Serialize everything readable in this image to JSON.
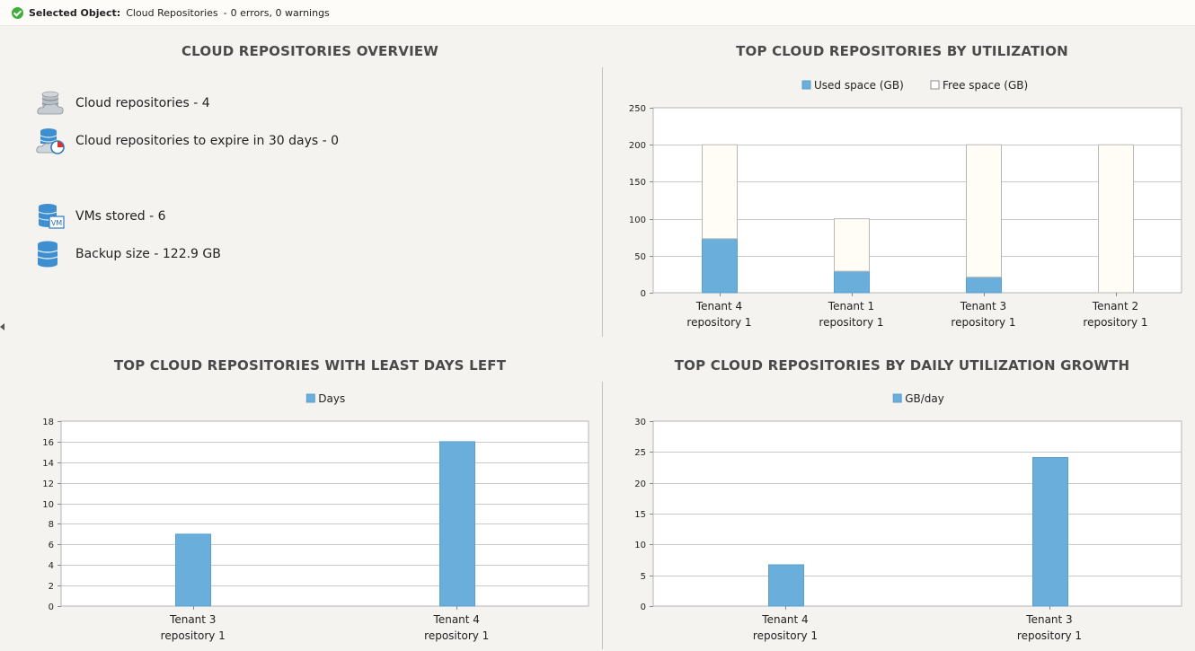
{
  "status": {
    "key": "Selected Object:",
    "object": "Cloud Repositories",
    "separator": "-",
    "summary": "0 errors, 0 warnings"
  },
  "overview": {
    "title": "CLOUD REPOSITORIES OVERVIEW",
    "items": [
      {
        "label": "Cloud repositories",
        "sep": " - ",
        "value": "4",
        "icon": "cloud-database-icon"
      },
      {
        "label": "Cloud repositories to expire in 30 days",
        "sep": " - ",
        "value": "0",
        "icon": "cloud-expire-icon"
      },
      {
        "label": "VMs stored",
        "sep": " - ",
        "value": "6",
        "icon": "vm-database-icon"
      },
      {
        "label": "Backup size",
        "sep": " - ",
        "value": "122.9 GB",
        "icon": "database-icon"
      }
    ]
  },
  "colors": {
    "used": "#6aafdc",
    "free": "#fffdf6",
    "bar_border": "#b7b7b7",
    "grid": "#c9c9c9"
  },
  "chart_data": [
    {
      "id": "utilization",
      "type": "bar",
      "stacked": true,
      "title": "TOP CLOUD REPOSITORIES BY UTILIZATION",
      "categories": [
        [
          "Tenant 4",
          "repository 1"
        ],
        [
          "Tenant 1",
          "repository 1"
        ],
        [
          "Tenant 3",
          "repository 1"
        ],
        [
          "Tenant 2",
          "repository 1"
        ]
      ],
      "series": [
        {
          "name": "Used space (GB)",
          "values": [
            73,
            29,
            21,
            0
          ]
        },
        {
          "name": "Free space (GB)",
          "values": [
            127,
            71,
            179,
            200
          ]
        }
      ],
      "ylim": [
        0,
        250
      ],
      "yticks": [
        0,
        50,
        100,
        150,
        200,
        250
      ],
      "grid": true,
      "legend": "top-center"
    },
    {
      "id": "days-left",
      "type": "bar",
      "title": "TOP CLOUD REPOSITORIES WITH LEAST DAYS LEFT",
      "categories": [
        [
          "Tenant 3",
          "repository 1"
        ],
        [
          "Tenant 4",
          "repository 1"
        ]
      ],
      "series": [
        {
          "name": "Days",
          "values": [
            7,
            16
          ]
        }
      ],
      "ylim": [
        0,
        18
      ],
      "yticks": [
        0,
        2,
        4,
        6,
        8,
        10,
        12,
        14,
        16,
        18
      ],
      "grid": true,
      "legend": "top-center"
    },
    {
      "id": "growth",
      "type": "bar",
      "title": "TOP CLOUD REPOSITORIES BY DAILY UTILIZATION GROWTH",
      "categories": [
        [
          "Tenant 4",
          "repository 1"
        ],
        [
          "Tenant 3",
          "repository 1"
        ]
      ],
      "series": [
        {
          "name": "GB/day",
          "values": [
            6.7,
            24.1
          ]
        }
      ],
      "ylim": [
        0,
        30
      ],
      "yticks": [
        0,
        5,
        10,
        15,
        20,
        25,
        30
      ],
      "grid": true,
      "legend": "top-center"
    }
  ]
}
